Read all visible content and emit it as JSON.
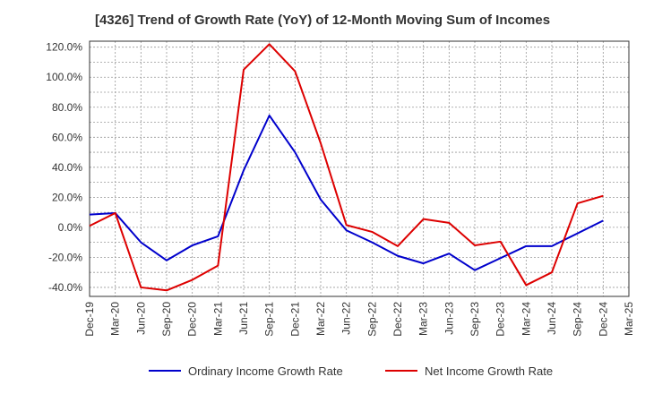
{
  "chart_data": {
    "type": "line",
    "title": "[4326]  Trend of Growth Rate (YoY) of 12-Month Moving Sum of Incomes",
    "xlabel": "",
    "ylabel": "",
    "x": [
      "Dec-19",
      "Mar-20",
      "Jun-20",
      "Sep-20",
      "Dec-20",
      "Mar-21",
      "Jun-21",
      "Sep-21",
      "Dec-21",
      "Mar-22",
      "Jun-22",
      "Sep-22",
      "Dec-22",
      "Mar-23",
      "Jun-23",
      "Sep-23",
      "Dec-23",
      "Mar-24",
      "Jun-24",
      "Sep-24",
      "Dec-24",
      "Mar-25"
    ],
    "y_ticks": [
      "120.0%",
      "100.0%",
      "80.0%",
      "60.0%",
      "40.0%",
      "20.0%",
      "0.0%",
      "-20.0%",
      "-40.0%"
    ],
    "y_tick_values": [
      120,
      100,
      80,
      60,
      40,
      20,
      0,
      -20,
      -40
    ],
    "ylim": [
      -46,
      124
    ],
    "grid": true,
    "legend_position": "bottom",
    "series": [
      {
        "name": "Ordinary Income Growth Rate",
        "color": "#0000cc",
        "values": [
          8.5,
          9.5,
          -10,
          -22,
          -12,
          -6,
          38,
          74.5,
          50,
          18.5,
          -2,
          -10,
          -19,
          -24,
          -17.5,
          -28.5,
          -20.5,
          -12.5,
          -12.5,
          -4,
          4.5,
          null
        ]
      },
      {
        "name": "Net Income Growth Rate",
        "color": "#dd0000",
        "values": [
          1,
          9.5,
          -40,
          -42,
          -35,
          -25.5,
          105,
          122,
          104,
          56,
          1.5,
          -3,
          -12.5,
          5.5,
          3,
          -12,
          -9.5,
          -38.5,
          -30,
          16,
          21,
          null
        ]
      }
    ]
  }
}
